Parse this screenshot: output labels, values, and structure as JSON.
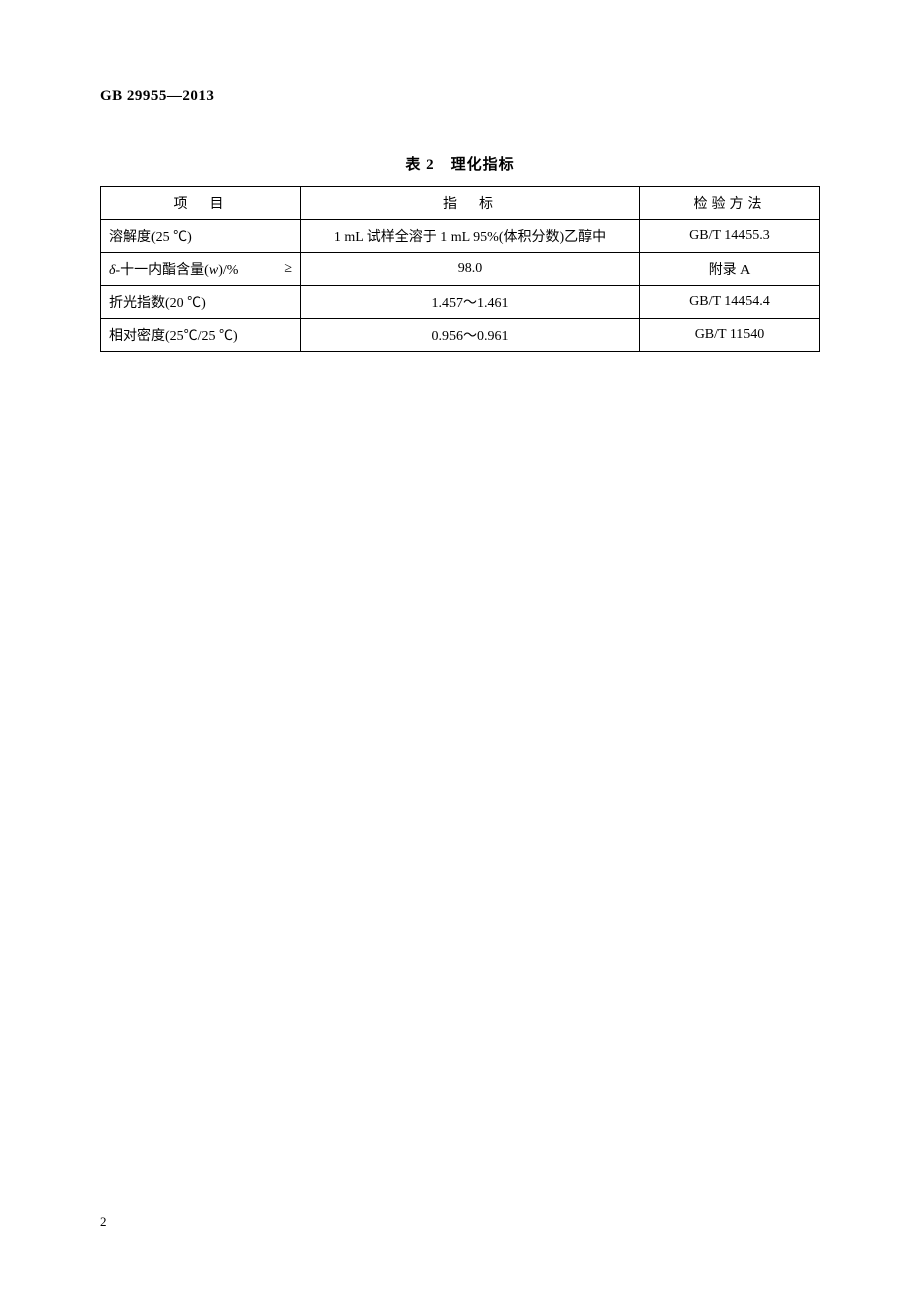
{
  "header": {
    "document_id": "GB 29955—2013"
  },
  "table": {
    "title": "表 2　理化指标",
    "columns": {
      "item": "项　目",
      "indicator": "指　标",
      "method": "检验方法"
    },
    "rows": [
      {
        "item": "溶解度(25 ℃)",
        "gte": "",
        "indicator": "1 mL 试样全溶于 1 mL 95%(体积分数)乙醇中",
        "method": "GB/T 14455.3"
      },
      {
        "item_prefix": "δ",
        "item_main": "-十一内酯含量(",
        "item_var": "w",
        "item_suffix": ")/%",
        "gte": "≥",
        "indicator": "98.0",
        "method": "附录 A"
      },
      {
        "item": "折光指数(20 ℃)",
        "gte": "",
        "indicator": "1.457～1.461",
        "method": "GB/T 14454.4"
      },
      {
        "item": "相对密度(25℃/25 ℃)",
        "gte": "",
        "indicator": "0.956～0.961",
        "method": "GB/T 11540"
      }
    ]
  },
  "page_number": "2"
}
